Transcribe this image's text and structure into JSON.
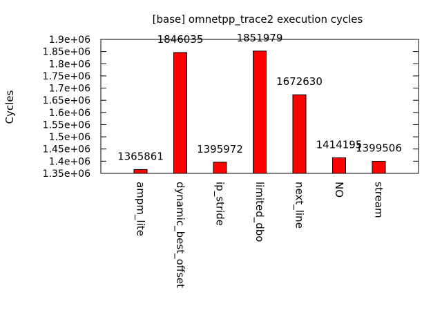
{
  "chart_data": {
    "type": "bar",
    "title": "[base] omnetpp_trace2 execution cycles",
    "xlabel": "",
    "ylabel": "Cycles",
    "ylim": [
      1350000,
      1900000
    ],
    "yticks": [
      1350000,
      1400000,
      1450000,
      1500000,
      1550000,
      1600000,
      1650000,
      1700000,
      1750000,
      1800000,
      1850000,
      1900000
    ],
    "ytick_labels": [
      "1.35e+06",
      "1.4e+06",
      "1.45e+06",
      "1.5e+06",
      "1.55e+06",
      "1.6e+06",
      "1.65e+06",
      "1.7e+06",
      "1.75e+06",
      "1.8e+06",
      "1.85e+06",
      "1.9e+06"
    ],
    "categories": [
      "ampm_lite",
      "dynamic_best_offset",
      "ip_stride",
      "limited_dbo",
      "next_line",
      "NO",
      "stream"
    ],
    "values": [
      1365861,
      1846035,
      1395972,
      1851979,
      1672630,
      1414195,
      1399506
    ],
    "value_labels": [
      "1365861",
      "1846035",
      "1395972",
      "1851979",
      "1672630",
      "1414195",
      "1399506"
    ],
    "bar_color": "#ff0000",
    "grid": false,
    "legend": "none"
  }
}
